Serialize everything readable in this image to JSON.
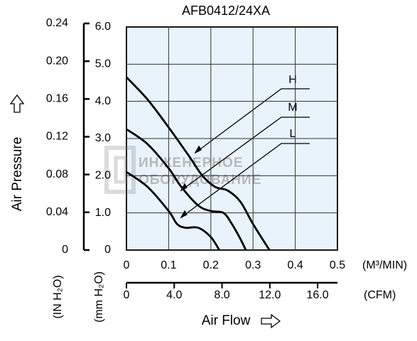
{
  "chart_data": {
    "type": "line",
    "title": "AFB0412/24XA",
    "xlabel": "Air Flow",
    "ylabel": "Air Pressure",
    "x_unit": "(M³/MIN)",
    "x2_unit": "(CFM)",
    "y_unit": "(mm H₂O)",
    "y2_unit": "(IN H₂O)",
    "xlim": [
      0,
      0.5
    ],
    "xticks": [
      0,
      0.1,
      0.2,
      0.3,
      0.4,
      0.5
    ],
    "x2lim": [
      0,
      17.66
    ],
    "x2ticks": [
      0,
      {
        "value": 4,
        "label": "4.0"
      },
      {
        "value": 8,
        "label": "8.0"
      },
      {
        "value": 12,
        "label": "12.0"
      },
      {
        "value": 16,
        "label": "16.0"
      }
    ],
    "ylim": [
      0,
      6
    ],
    "yticks": [
      0,
      {
        "value": 1,
        "label": "1.0"
      },
      {
        "value": 2,
        "label": "2.0"
      },
      {
        "value": 3,
        "label": "3.0"
      },
      {
        "value": 4,
        "label": "4.0"
      },
      {
        "value": 5,
        "label": "5.0"
      },
      {
        "value": 6,
        "label": "6.0"
      }
    ],
    "y2lim": [
      0,
      0.24
    ],
    "y2ticks": [
      0,
      0.04,
      0.08,
      0.12,
      {
        "value": 0.16,
        "label": "0.16"
      },
      {
        "value": 0.2,
        "label": "0.20"
      },
      0.24
    ],
    "grid": true,
    "series": [
      {
        "name": "H",
        "color": "#000000",
        "x": [
          0,
          0.05,
          0.1,
          0.15,
          0.18,
          0.21,
          0.24,
          0.27,
          0.3,
          0.339
        ],
        "values": [
          4.65,
          4.05,
          3.3,
          2.5,
          2.0,
          1.7,
          1.6,
          1.3,
          0.7,
          0
        ]
      },
      {
        "name": "M",
        "color": "#000000",
        "x": [
          0,
          0.05,
          0.1,
          0.13,
          0.17,
          0.2,
          0.23,
          0.25,
          0.27,
          0.283
        ],
        "values": [
          3.25,
          2.85,
          2.2,
          1.7,
          1.2,
          1.05,
          1.0,
          0.7,
          0.3,
          0
        ]
      },
      {
        "name": "L",
        "color": "#000000",
        "x": [
          0,
          0.05,
          0.1,
          0.12,
          0.14,
          0.17,
          0.2,
          0.22
        ],
        "values": [
          2.1,
          1.7,
          1.05,
          0.7,
          0.6,
          0.6,
          0.35,
          0
        ]
      }
    ],
    "watermark": [
      "ИНЖЕНЕРНОЕ",
      "ОБОРУДОВАНИЕ"
    ]
  }
}
